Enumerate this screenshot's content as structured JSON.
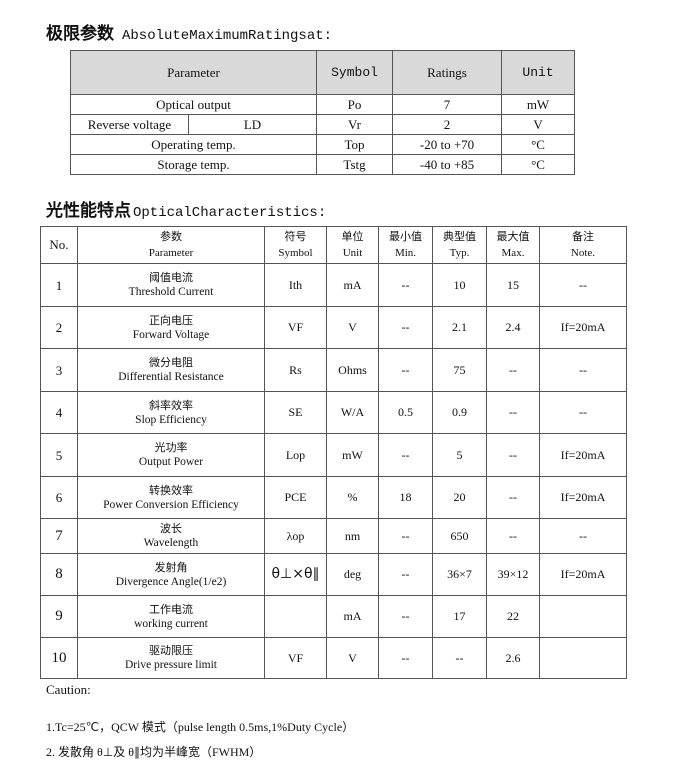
{
  "section1": {
    "title_zh": "极限参数",
    "title_en": "AbsoluteMaximumRatingsat:",
    "headers": [
      "Parameter",
      "Symbol",
      "Ratings",
      "Unit"
    ],
    "rows": [
      {
        "parameter": "Optical output",
        "symbol": "Po",
        "rating": "7",
        "unit": "mW"
      },
      {
        "parameter": "Reverse voltage",
        "sub": "LD",
        "symbol": "Vr",
        "rating": "2",
        "unit": "V"
      },
      {
        "parameter": "Operating temp.",
        "symbol": "Top",
        "rating": "-20 to +70",
        "unit": "°C"
      },
      {
        "parameter": "Storage temp.",
        "symbol": "Tstg",
        "rating": "-40 to +85",
        "unit": "°C"
      }
    ]
  },
  "section2": {
    "title_zh": "光性能特点",
    "title_en": "OpticalCharacteristics:",
    "headers": [
      {
        "zh": "No.",
        "en": ""
      },
      {
        "zh": "参数",
        "en": "Parameter"
      },
      {
        "zh": "符号",
        "en": "Symbol"
      },
      {
        "zh": "单位",
        "en": "Unit"
      },
      {
        "zh": "最小值",
        "en": "Min."
      },
      {
        "zh": "典型值",
        "en": "Typ."
      },
      {
        "zh": "最大值",
        "en": "Max."
      },
      {
        "zh": "备注",
        "en": "Note."
      }
    ],
    "rows": [
      {
        "no": "1",
        "zh": "阈值电流",
        "en": "Threshold Current",
        "symbol": "Ith",
        "unit": "mA",
        "min": "--",
        "typ": "10",
        "max": "15",
        "note": "--"
      },
      {
        "no": "2",
        "zh": "正向电压",
        "en": "Forward Voltage",
        "symbol": "VF",
        "unit": "V",
        "min": "--",
        "typ": "2.1",
        "max": "2.4",
        "note": "If=20mA"
      },
      {
        "no": "3",
        "zh": "微分电阻",
        "en": "Differential Resistance",
        "symbol": "Rs",
        "unit": "Ohms",
        "min": "--",
        "typ": "75",
        "max": "--",
        "note": "--"
      },
      {
        "no": "4",
        "zh": "斜率效率",
        "en": "Slop Efficiency",
        "symbol": "SE",
        "unit": "W/A",
        "min": "0.5",
        "typ": "0.9",
        "max": "--",
        "note": "--"
      },
      {
        "no": "5",
        "zh": "光功率",
        "en": "Output Power",
        "symbol": "Lop",
        "unit": "mW",
        "min": "--",
        "typ": "5",
        "max": "--",
        "note": "If=20mA"
      },
      {
        "no": "6",
        "zh": "转换效率",
        "en": "Power Conversion Efficiency",
        "symbol": "PCE",
        "unit": "%",
        "min": "18",
        "typ": "20",
        "max": "--",
        "note": "If=20mA"
      },
      {
        "no": "7",
        "zh": "波长",
        "en": "Wavelength",
        "symbol": "λop",
        "unit": "nm",
        "min": "--",
        "typ": "650",
        "max": "--",
        "note": "--"
      },
      {
        "no": "8",
        "zh": "发射角",
        "en": "Divergence Angle(1/e2)",
        "symbol": "θ⊥×θ∥",
        "unit": "deg",
        "min": "--",
        "typ": "36×7",
        "max": "39×12",
        "note": "If=20mA"
      },
      {
        "no": "9",
        "zh": "工作电流",
        "en": "working current",
        "symbol": "",
        "unit": "mA",
        "min": "--",
        "typ": "17",
        "max": "22",
        "note": ""
      },
      {
        "no": "10",
        "zh": "驱动限压",
        "en": "Drive pressure limit",
        "symbol": "VF",
        "unit": "V",
        "min": "--",
        "typ": "--",
        "max": "2.6",
        "note": ""
      }
    ]
  },
  "caution": {
    "label": "Caution:",
    "notes": [
      "1.Tc=25℃，QCW 模式（pulse length 0.5ms,1%Duty Cycle）",
      "2. 发散角 θ⊥及 θ∥均为半峰宽（FWHM）"
    ]
  }
}
